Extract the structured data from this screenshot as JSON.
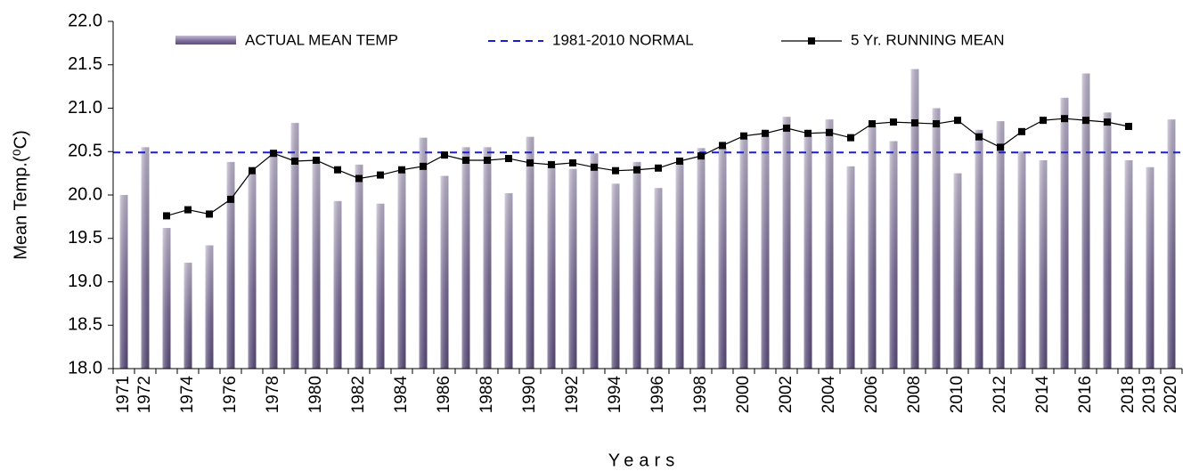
{
  "chart_data": {
    "type": "bar",
    "x_label": "Years",
    "y_label": "Mean Temp.(⁰C)",
    "categories": [
      "1971",
      "1972",
      null,
      "1974",
      null,
      "1976",
      null,
      "1978",
      null,
      "1980",
      null,
      "1982",
      null,
      "1984",
      null,
      "1986",
      null,
      "1988",
      null,
      "1990",
      null,
      "1992",
      null,
      "1994",
      null,
      "1996",
      null,
      "1998",
      null,
      "2000",
      null,
      "2002",
      null,
      "2004",
      null,
      "2006",
      null,
      "2008",
      null,
      "2010",
      null,
      "2012",
      null,
      "2014",
      null,
      "2016",
      null,
      "2018",
      "2019",
      "2020"
    ],
    "series": [
      {
        "name": "ACTUAL MEAN TEMP",
        "color": "#8e7fa8",
        "type": "bar",
        "values": [
          20.0,
          20.55,
          19.62,
          19.22,
          19.42,
          20.38,
          20.25,
          20.5,
          20.83,
          20.42,
          19.93,
          20.35,
          19.9,
          20.27,
          20.66,
          20.22,
          20.55,
          20.55,
          20.02,
          20.67,
          20.35,
          20.3,
          20.48,
          20.13,
          20.38,
          20.08,
          20.38,
          20.54,
          20.55,
          20.65,
          20.73,
          20.9,
          20.68,
          20.87,
          20.33,
          20.8,
          20.62,
          21.45,
          21.0,
          20.25,
          20.75,
          20.85,
          20.5,
          20.4,
          21.12,
          21.4,
          20.95,
          20.4,
          20.32,
          20.87
        ]
      },
      {
        "name": "5 Yr. RUNNING MEAN",
        "color": "#000000",
        "type": "line",
        "values": [
          null,
          null,
          19.76,
          19.83,
          19.78,
          19.95,
          20.28,
          20.48,
          20.39,
          20.4,
          20.29,
          20.19,
          20.23,
          20.29,
          20.33,
          20.46,
          20.4,
          20.4,
          20.42,
          20.37,
          20.35,
          20.37,
          20.32,
          20.28,
          20.29,
          20.31,
          20.39,
          20.45,
          20.57,
          20.68,
          20.71,
          20.77,
          20.71,
          20.72,
          20.66,
          20.82,
          20.84,
          20.83,
          20.82,
          20.86,
          20.67,
          20.55,
          20.73,
          20.86,
          20.88,
          20.86,
          20.84,
          20.79,
          null,
          null
        ]
      }
    ],
    "normal": {
      "name": "1981-2010 NORMAL",
      "color": "#1c1cd6",
      "value": 20.49
    },
    "ylim": [
      18,
      22
    ],
    "yticks": [
      {
        "value": 18,
        "label": "18.0"
      },
      18.5,
      {
        "value": 19,
        "label": "19.0"
      },
      19.5,
      {
        "value": 20,
        "label": "20.0"
      },
      20.5,
      {
        "value": 21,
        "label": "21.0"
      },
      21.5,
      {
        "value": 22,
        "label": "22.0"
      }
    ]
  }
}
